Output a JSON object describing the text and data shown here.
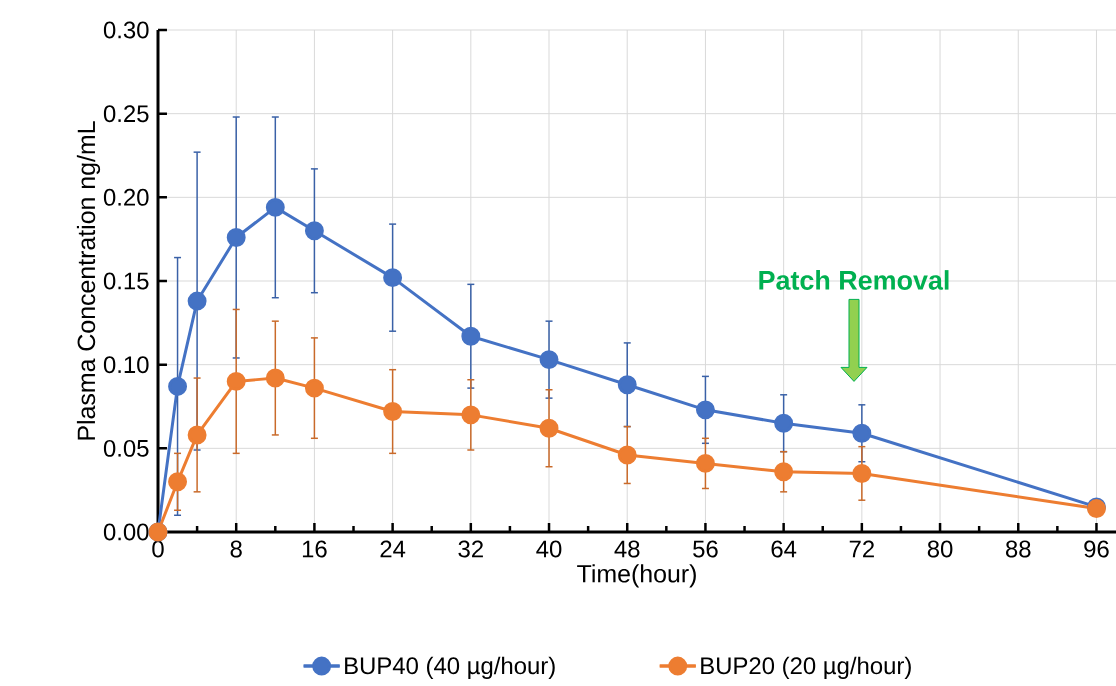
{
  "chart_data": {
    "type": "line",
    "xlabel": "Time(hour)",
    "ylabel": "Plasma Concentration ng/mL",
    "x": [
      0,
      2,
      4,
      8,
      12,
      16,
      24,
      32,
      40,
      48,
      56,
      64,
      72,
      96
    ],
    "series": [
      {
        "name": "BUP40 (40 µg/hour)",
        "color": "#4472c4",
        "values": [
          0,
          0.087,
          0.138,
          0.176,
          0.194,
          0.18,
          0.152,
          0.117,
          0.103,
          0.088,
          0.073,
          0.065,
          0.059,
          0.015
        ],
        "errors": [
          null,
          0.077,
          0.089,
          0.072,
          0.054,
          0.037,
          0.032,
          0.031,
          0.023,
          0.025,
          0.02,
          0.017,
          0.017,
          null
        ]
      },
      {
        "name": "BUP20 (20 µg/hour)",
        "color": "#ed7d31",
        "values": [
          0,
          0.03,
          0.058,
          0.09,
          0.092,
          0.086,
          0.072,
          0.07,
          0.062,
          0.046,
          0.041,
          0.036,
          0.035,
          0.014
        ],
        "errors": [
          null,
          0.017,
          0.034,
          0.043,
          0.034,
          0.03,
          0.025,
          0.021,
          0.023,
          0.017,
          0.015,
          0.012,
          0.016,
          null
        ]
      }
    ],
    "xlim": [
      0,
      98
    ],
    "xticks": [
      0,
      8,
      16,
      24,
      32,
      40,
      48,
      56,
      64,
      72,
      80,
      88,
      96
    ],
    "ylim": [
      0,
      0.3
    ],
    "yticks": [
      {
        "value": 0,
        "label": "0.00"
      },
      {
        "value": 0.05,
        "label": "0.05"
      },
      {
        "value": 0.1,
        "label": "0.10"
      },
      {
        "value": 0.15,
        "label": "0.15"
      },
      {
        "value": 0.2,
        "label": "0.20"
      },
      {
        "value": 0.25,
        "label": "0.25"
      },
      {
        "value": 0.3,
        "label": "0.30"
      }
    ],
    "annotations": [
      "Patch Removal"
    ],
    "grid": true,
    "legend": "bottom",
    "marker": "circle",
    "line_style": "solid"
  }
}
